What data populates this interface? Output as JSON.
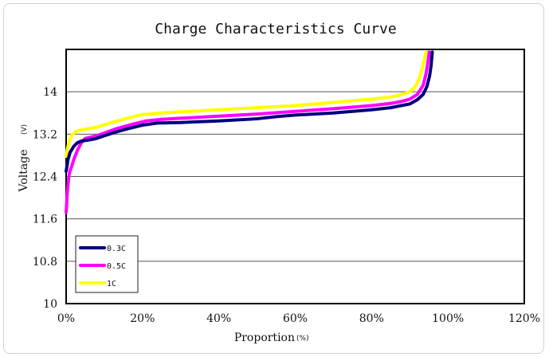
{
  "chart_data": {
    "type": "line",
    "title": "Charge Characteristics Curve",
    "xlabel": "Proportion",
    "xlabel_unit": "(%)",
    "ylabel": "Voltage",
    "ylabel_unit": "(V)",
    "xlim": [
      0,
      120
    ],
    "ylim": [
      10,
      14.8
    ],
    "x_ticks": [
      0,
      20,
      40,
      60,
      80,
      100,
      120
    ],
    "x_tick_labels": [
      "0%",
      "20%",
      "40%",
      "60%",
      "80%",
      "100%",
      "120%"
    ],
    "y_ticks": [
      10,
      10.8,
      11.6,
      12.4,
      13.2,
      14
    ],
    "y_tick_labels": [
      "10",
      "10.8",
      "11.6",
      "12.4",
      "13.2",
      "14"
    ],
    "grid": "horizontal",
    "legend_position": "bottom-left",
    "series": [
      {
        "name": "0.3C",
        "color": "#00007f",
        "points": [
          [
            0,
            12.5
          ],
          [
            0.5,
            12.72
          ],
          [
            1,
            12.85
          ],
          [
            2,
            12.97
          ],
          [
            3,
            13.04
          ],
          [
            4,
            13.07
          ],
          [
            6,
            13.09
          ],
          [
            8,
            13.12
          ],
          [
            10,
            13.17
          ],
          [
            13,
            13.24
          ],
          [
            16,
            13.3
          ],
          [
            20,
            13.37
          ],
          [
            24,
            13.41
          ],
          [
            30,
            13.42
          ],
          [
            40,
            13.45
          ],
          [
            50,
            13.49
          ],
          [
            55,
            13.53
          ],
          [
            60,
            13.56
          ],
          [
            70,
            13.6
          ],
          [
            80,
            13.66
          ],
          [
            85,
            13.7
          ],
          [
            90,
            13.77
          ],
          [
            92,
            13.85
          ],
          [
            93.5,
            13.95
          ],
          [
            94.5,
            14.1
          ],
          [
            95.2,
            14.3
          ],
          [
            95.6,
            14.5
          ],
          [
            95.9,
            14.75
          ]
        ]
      },
      {
        "name": "0.5C",
        "color": "#ff00ff",
        "points": [
          [
            0,
            11.72
          ],
          [
            0.3,
            12.1
          ],
          [
            0.7,
            12.4
          ],
          [
            1,
            12.5
          ],
          [
            1.5,
            12.6
          ],
          [
            2,
            12.72
          ],
          [
            3,
            12.9
          ],
          [
            4,
            13.04
          ],
          [
            5,
            13.12
          ],
          [
            8,
            13.17
          ],
          [
            10,
            13.22
          ],
          [
            13,
            13.3
          ],
          [
            17,
            13.38
          ],
          [
            21,
            13.45
          ],
          [
            25,
            13.48
          ],
          [
            30,
            13.5
          ],
          [
            40,
            13.54
          ],
          [
            50,
            13.58
          ],
          [
            60,
            13.63
          ],
          [
            70,
            13.68
          ],
          [
            80,
            13.74
          ],
          [
            85,
            13.78
          ],
          [
            88,
            13.82
          ],
          [
            90,
            13.86
          ],
          [
            92,
            13.95
          ],
          [
            93.5,
            14.12
          ],
          [
            94.3,
            14.35
          ],
          [
            94.8,
            14.58
          ],
          [
            95.1,
            14.75
          ]
        ]
      },
      {
        "name": "1C",
        "color": "#ffff00",
        "points": [
          [
            0,
            12.78
          ],
          [
            0.5,
            12.98
          ],
          [
            1,
            13.1
          ],
          [
            1.5,
            13.18
          ],
          [
            2.5,
            13.25
          ],
          [
            4,
            13.28
          ],
          [
            8,
            13.33
          ],
          [
            12,
            13.42
          ],
          [
            16,
            13.5
          ],
          [
            20,
            13.57
          ],
          [
            25,
            13.6
          ],
          [
            30,
            13.62
          ],
          [
            40,
            13.66
          ],
          [
            50,
            13.7
          ],
          [
            60,
            13.74
          ],
          [
            70,
            13.8
          ],
          [
            80,
            13.86
          ],
          [
            85,
            13.9
          ],
          [
            88,
            13.95
          ],
          [
            90,
            14.0
          ],
          [
            91.5,
            14.1
          ],
          [
            92.5,
            14.25
          ],
          [
            93.3,
            14.45
          ],
          [
            93.8,
            14.6
          ],
          [
            94.3,
            14.75
          ]
        ]
      }
    ]
  }
}
